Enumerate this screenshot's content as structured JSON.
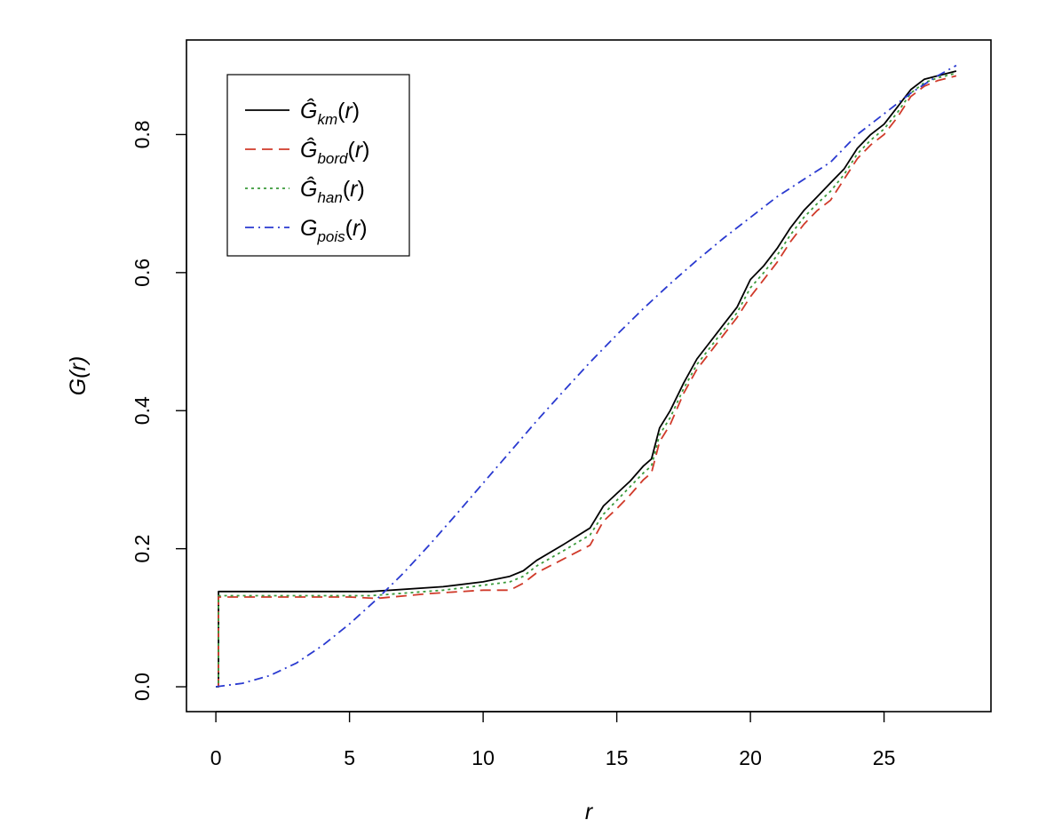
{
  "chart_data": {
    "type": "line",
    "xlabel": "r",
    "ylabel": "G(r)",
    "xlim": [
      -1.1,
      29.0
    ],
    "ylim": [
      -0.036,
      0.937
    ],
    "xticks": [
      0,
      5,
      10,
      15,
      20,
      25
    ],
    "yticks": [
      0.0,
      0.2,
      0.4,
      0.6,
      0.8
    ],
    "xtick_labels": [
      "0",
      "5",
      "10",
      "15",
      "20",
      "25"
    ],
    "ytick_labels": [
      "0.0",
      "0.2",
      "0.4",
      "0.6",
      "0.8"
    ],
    "grid": false,
    "legend_position": "top-left",
    "series": [
      {
        "name": "Ĝ_km(r)",
        "color": "#000000",
        "dash": "solid",
        "x": [
          0.0,
          0.1,
          0.1,
          5.8,
          8.5,
          10.0,
          11.0,
          11.5,
          12.0,
          13.0,
          14.0,
          14.5,
          15.0,
          15.5,
          16.0,
          16.3,
          16.6,
          17.0,
          17.5,
          18.0,
          18.5,
          19.0,
          19.5,
          20.0,
          20.5,
          21.0,
          21.5,
          22.0,
          22.5,
          23.0,
          23.5,
          24.0,
          24.5,
          25.0,
          25.5,
          26.0,
          26.5,
          27.0,
          27.7
        ],
        "y": [
          0.0,
          0.0,
          0.138,
          0.138,
          0.145,
          0.152,
          0.16,
          0.168,
          0.183,
          0.206,
          0.23,
          0.262,
          0.28,
          0.298,
          0.32,
          0.33,
          0.375,
          0.4,
          0.44,
          0.475,
          0.5,
          0.525,
          0.55,
          0.59,
          0.61,
          0.635,
          0.665,
          0.69,
          0.71,
          0.73,
          0.75,
          0.78,
          0.8,
          0.815,
          0.84,
          0.865,
          0.88,
          0.885,
          0.892
        ]
      },
      {
        "name": "Ĝ_bord(r)",
        "color": "#d03a2a",
        "dash": "dashed",
        "x": [
          0.0,
          0.1,
          0.1,
          5.0,
          6.0,
          8.0,
          10.0,
          11.0,
          11.5,
          12.0,
          13.0,
          14.0,
          14.5,
          15.0,
          15.5,
          16.0,
          16.3,
          16.6,
          17.0,
          17.5,
          18.0,
          18.5,
          19.0,
          19.5,
          20.0,
          20.5,
          21.0,
          21.5,
          22.0,
          22.5,
          23.0,
          23.5,
          24.0,
          24.5,
          25.0,
          25.5,
          26.0,
          26.5,
          27.0,
          27.7
        ],
        "y": [
          0.0,
          0.0,
          0.13,
          0.13,
          0.128,
          0.135,
          0.14,
          0.14,
          0.15,
          0.165,
          0.185,
          0.205,
          0.24,
          0.258,
          0.278,
          0.3,
          0.31,
          0.355,
          0.38,
          0.425,
          0.46,
          0.485,
          0.51,
          0.535,
          0.565,
          0.59,
          0.615,
          0.645,
          0.67,
          0.69,
          0.705,
          0.735,
          0.765,
          0.785,
          0.8,
          0.825,
          0.855,
          0.87,
          0.878,
          0.885
        ]
      },
      {
        "name": "Ĝ_han(r)",
        "color": "#3a9a3a",
        "dash": "dotted",
        "x": [
          0.0,
          0.1,
          0.1,
          5.8,
          8.5,
          10.0,
          11.0,
          11.5,
          12.0,
          13.0,
          14.0,
          14.5,
          15.0,
          15.5,
          16.0,
          16.3,
          16.6,
          17.0,
          17.5,
          18.0,
          18.5,
          19.0,
          19.5,
          20.0,
          20.5,
          21.0,
          21.5,
          22.0,
          22.5,
          23.0,
          23.5,
          24.0,
          24.5,
          25.0,
          25.5,
          26.0,
          26.5,
          27.0,
          27.7
        ],
        "y": [
          0.0,
          0.0,
          0.132,
          0.132,
          0.14,
          0.147,
          0.152,
          0.16,
          0.175,
          0.197,
          0.22,
          0.25,
          0.27,
          0.29,
          0.31,
          0.32,
          0.365,
          0.39,
          0.432,
          0.467,
          0.492,
          0.517,
          0.542,
          0.578,
          0.6,
          0.625,
          0.655,
          0.68,
          0.7,
          0.718,
          0.742,
          0.772,
          0.792,
          0.808,
          0.832,
          0.86,
          0.875,
          0.882,
          0.889
        ]
      },
      {
        "name": "G_pois(r)",
        "color": "#2a3ad0",
        "dash": "dashdot",
        "x": [
          0.0,
          1.0,
          2.0,
          3.0,
          4.0,
          5.0,
          6.0,
          7.0,
          8.0,
          9.0,
          10.0,
          11.0,
          12.0,
          13.0,
          14.0,
          15.0,
          16.0,
          17.0,
          18.0,
          19.0,
          20.0,
          21.0,
          22.0,
          23.0,
          24.0,
          25.0,
          26.0,
          27.0,
          27.7
        ],
        "y": [
          0.0,
          0.005,
          0.016,
          0.034,
          0.06,
          0.091,
          0.126,
          0.164,
          0.206,
          0.25,
          0.295,
          0.34,
          0.385,
          0.428,
          0.47,
          0.51,
          0.548,
          0.584,
          0.618,
          0.65,
          0.68,
          0.71,
          0.735,
          0.76,
          0.8,
          0.83,
          0.86,
          0.885,
          0.9
        ]
      }
    ]
  }
}
